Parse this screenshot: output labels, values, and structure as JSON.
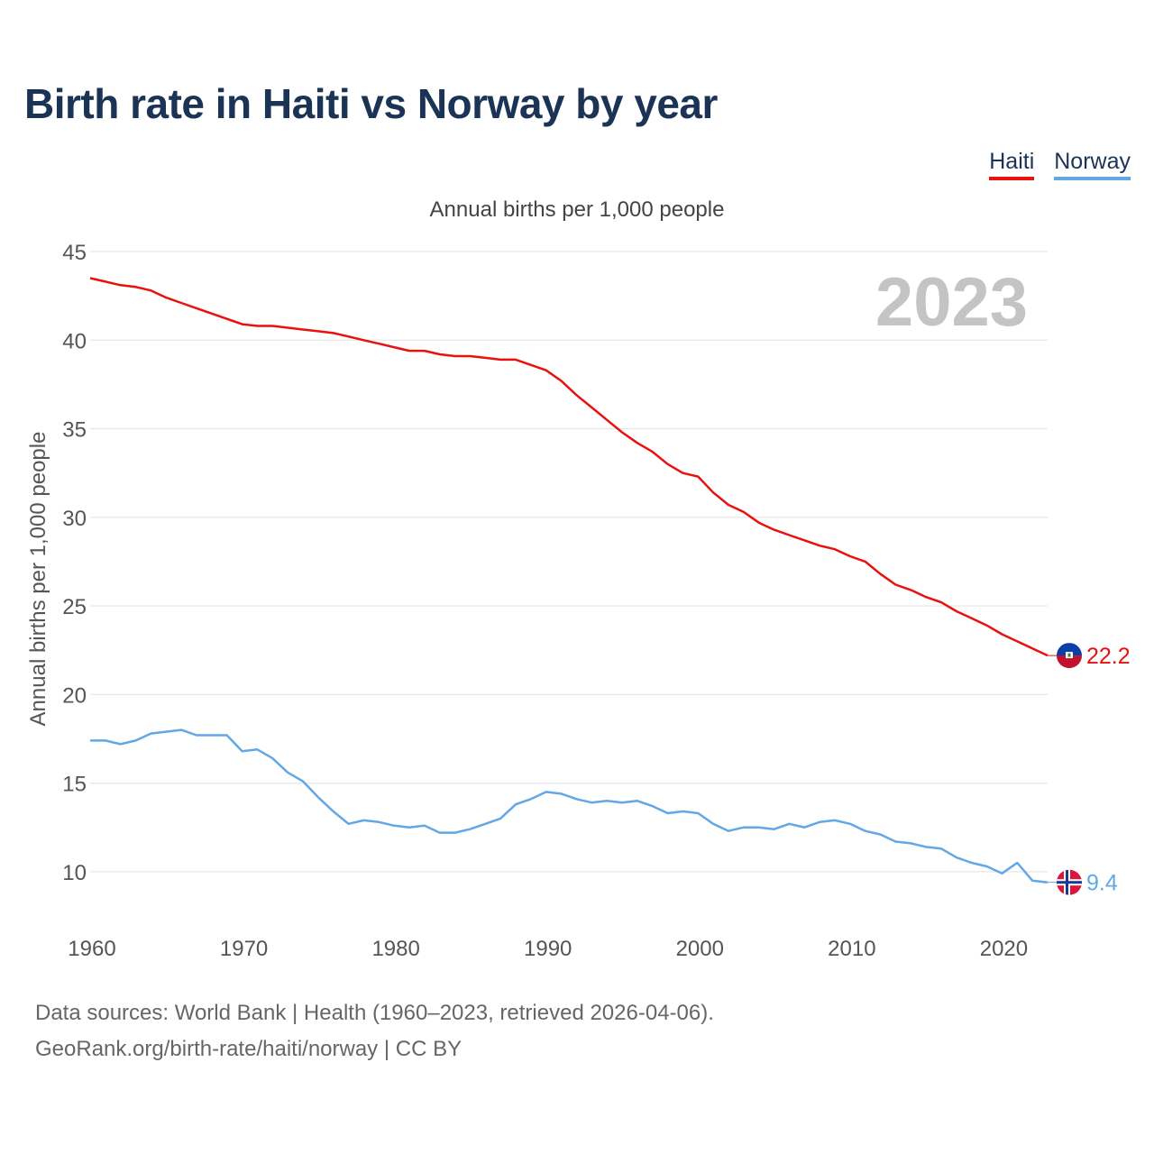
{
  "title": "Birth rate in Haiti vs Norway by year",
  "legend": [
    {
      "label": "Haiti",
      "color": "#e8110f"
    },
    {
      "label": "Norway",
      "color": "#62a7e6"
    }
  ],
  "footer": {
    "line1": "Data sources: World Bank | Health (1960–2023, retrieved 2026-04-06).",
    "line2": "GeoRank.org/birth-rate/haiti/norway | CC BY"
  },
  "chart_data": {
    "type": "line",
    "subtitle": "Annual births per 1,000 people",
    "ylabel": "Annual births per 1,000 people",
    "xlabel": "",
    "year_label": "2023",
    "xlim": [
      1960,
      2023
    ],
    "ylim": [
      7.5,
      45
    ],
    "x_ticks": [
      1960,
      1970,
      1980,
      1990,
      2000,
      2010,
      2020
    ],
    "y_ticks": [
      10,
      15,
      20,
      25,
      30,
      35,
      40,
      45
    ],
    "grid": true,
    "x": [
      1960,
      1961,
      1962,
      1963,
      1964,
      1965,
      1966,
      1967,
      1968,
      1969,
      1970,
      1971,
      1972,
      1973,
      1974,
      1975,
      1976,
      1977,
      1978,
      1979,
      1980,
      1981,
      1982,
      1983,
      1984,
      1985,
      1986,
      1987,
      1988,
      1989,
      1990,
      1991,
      1992,
      1993,
      1994,
      1995,
      1996,
      1997,
      1998,
      1999,
      2000,
      2001,
      2002,
      2003,
      2004,
      2005,
      2006,
      2007,
      2008,
      2009,
      2010,
      2011,
      2012,
      2013,
      2014,
      2015,
      2016,
      2017,
      2018,
      2019,
      2020,
      2021,
      2022,
      2023
    ],
    "series": [
      {
        "name": "Haiti",
        "color": "#e8110f",
        "end_label": "22.2",
        "values": [
          43.5,
          43.3,
          43.1,
          43.0,
          42.8,
          42.4,
          42.1,
          41.8,
          41.5,
          41.2,
          40.9,
          40.8,
          40.8,
          40.7,
          40.6,
          40.5,
          40.4,
          40.2,
          40.0,
          39.8,
          39.6,
          39.4,
          39.4,
          39.2,
          39.1,
          39.1,
          39.0,
          38.9,
          38.9,
          38.6,
          38.3,
          37.7,
          36.9,
          36.2,
          35.5,
          34.8,
          34.2,
          33.7,
          33.0,
          32.5,
          32.3,
          31.4,
          30.7,
          30.3,
          29.7,
          29.3,
          29.0,
          28.7,
          28.4,
          28.2,
          27.8,
          27.5,
          26.8,
          26.2,
          25.9,
          25.5,
          25.2,
          24.7,
          24.3,
          23.9,
          23.4,
          23.0,
          22.6,
          22.2
        ]
      },
      {
        "name": "Norway",
        "color": "#62a7e6",
        "end_label": "9.4",
        "values": [
          17.4,
          17.4,
          17.2,
          17.4,
          17.8,
          17.9,
          18.0,
          17.7,
          17.7,
          17.7,
          16.8,
          16.9,
          16.4,
          15.6,
          15.1,
          14.2,
          13.4,
          12.7,
          12.9,
          12.8,
          12.6,
          12.5,
          12.6,
          12.2,
          12.2,
          12.4,
          12.7,
          13.0,
          13.8,
          14.1,
          14.5,
          14.4,
          14.1,
          13.9,
          14.0,
          13.9,
          14.0,
          13.7,
          13.3,
          13.4,
          13.3,
          12.7,
          12.3,
          12.5,
          12.5,
          12.4,
          12.7,
          12.5,
          12.8,
          12.9,
          12.7,
          12.3,
          12.1,
          11.7,
          11.6,
          11.4,
          11.3,
          10.8,
          10.5,
          10.3,
          9.9,
          10.5,
          9.5,
          9.4
        ]
      }
    ]
  }
}
